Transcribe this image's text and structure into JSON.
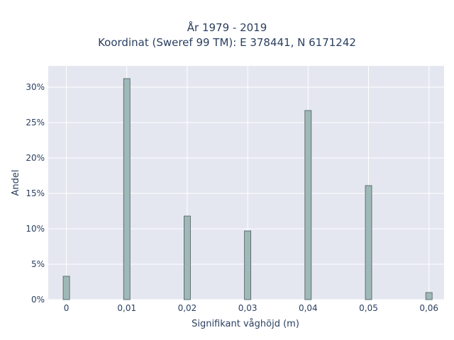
{
  "chart_data": {
    "type": "bar",
    "title_lines": [
      "År 1979 - 2019",
      "Koordinat (Sweref 99 TM): E 378441, N 6171242"
    ],
    "xlabel": "Signifikant våghöjd (m)",
    "ylabel": "Andel",
    "x": [
      0,
      0.01,
      0.02,
      0.03,
      0.04,
      0.05,
      0.06
    ],
    "values": [
      3.3,
      31.2,
      11.8,
      9.7,
      26.7,
      16.1,
      1.0
    ],
    "xlim": [
      -0.003,
      0.0625
    ],
    "ylim": [
      0,
      33
    ],
    "x_ticks": [
      0,
      0.01,
      0.02,
      0.03,
      0.04,
      0.05,
      0.06
    ],
    "x_tick_labels": [
      "0",
      "0,01",
      "0,02",
      "0,03",
      "0,04",
      "0,05",
      "0,06"
    ],
    "y_ticks": [
      0,
      5,
      10,
      15,
      20,
      25,
      30
    ],
    "y_tick_labels": [
      "0%",
      "5%",
      "10%",
      "15%",
      "20%",
      "25%",
      "30%"
    ],
    "grid": true,
    "colors": {
      "bar_fill": "#9fb8b8",
      "bar_stroke": "#4a5a5a",
      "plot_bg": "#e5e7f0",
      "grid": "#ffffff"
    }
  }
}
